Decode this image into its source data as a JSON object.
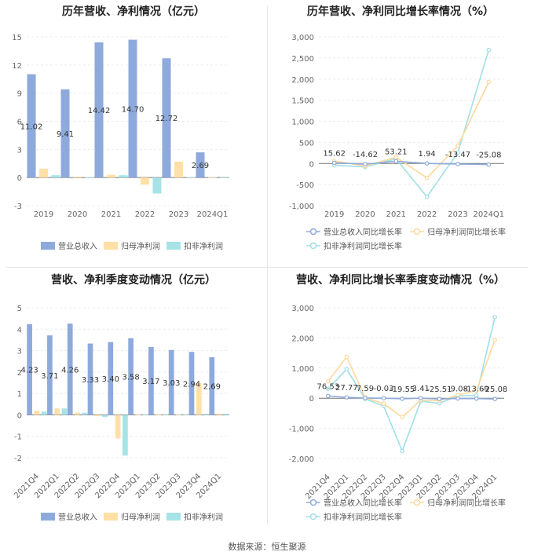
{
  "source_label": "数据来源：恒生聚源",
  "colors": {
    "revenue": "#8eaadc",
    "netprofit": "#ffe0a6",
    "deducted": "#a6e3e6",
    "revenue_line": "#8eaadc",
    "netprofit_line": "#ffd89a",
    "deducted_line": "#9fdfe6"
  },
  "chart_data": [
    {
      "type": "bar",
      "title": "历年营收、净利情况（亿元）",
      "categories": [
        "2019",
        "2020",
        "2021",
        "2022",
        "2023",
        "2024Q1"
      ],
      "series": [
        {
          "name": "营业总收入",
          "values": [
            11.02,
            9.41,
            14.42,
            14.7,
            12.72,
            2.69
          ],
          "labels": [
            "11.02",
            "9.41",
            "14.42",
            "14.70",
            "12.72",
            "2.69"
          ]
        },
        {
          "name": "归母净利润",
          "values": [
            0.95,
            0.1,
            0.3,
            -0.75,
            1.7,
            0.05
          ]
        },
        {
          "name": "扣非净利润",
          "values": [
            0.25,
            0.05,
            0.25,
            -1.7,
            0.05,
            0.02
          ]
        }
      ],
      "yticks": [
        "15",
        "12",
        "9",
        "6",
        "3",
        "0",
        "-3"
      ],
      "ylim": [
        -3,
        15
      ],
      "legend_position": "bottom"
    },
    {
      "type": "line",
      "title": "历年营收、净利同比增长率情况（%）",
      "categories": [
        "2019",
        "2020",
        "2021",
        "2022",
        "2023",
        "2024Q1"
      ],
      "series": [
        {
          "name": "营业总收入同比增长率",
          "values": [
            15.62,
            -14.62,
            53.21,
            1.94,
            -13.47,
            -25.08
          ],
          "labels": [
            "15.62",
            "-14.62",
            "53.21",
            "1.94",
            "-13.47",
            "-25.08"
          ]
        },
        {
          "name": "归母净利润同比增长率",
          "values": [
            60,
            -60,
            150,
            -340,
            420,
            1930
          ]
        },
        {
          "name": "扣非净利润同比增长率",
          "values": [
            -40,
            -80,
            110,
            -790,
            260,
            2690
          ]
        }
      ],
      "yticks": [
        "3,000",
        "2,500",
        "2,000",
        "1,500",
        "1,000",
        "500",
        "0",
        "-500",
        "-1,000"
      ],
      "ylim": [
        -1000,
        3000
      ],
      "legend_position": "bottom"
    },
    {
      "type": "bar",
      "title": "营收、净利季度变动情况（亿元）",
      "categories": [
        "2021Q4",
        "2022Q1",
        "2022Q2",
        "2022Q3",
        "2022Q4",
        "2023Q1",
        "2023Q2",
        "2023Q3",
        "2023Q4",
        "2024Q1"
      ],
      "series": [
        {
          "name": "营业总收入",
          "values": [
            4.23,
            3.71,
            4.26,
            3.33,
            3.4,
            3.58,
            3.17,
            3.03,
            2.94,
            2.69
          ],
          "labels": [
            "4.23",
            "3.71",
            "4.26",
            "3.33",
            "3.40",
            "3.58",
            "3.17",
            "3.03",
            "2.94",
            "2.69"
          ]
        },
        {
          "name": "归母净利润",
          "values": [
            0.2,
            0.3,
            0.1,
            -0.05,
            -1.1,
            0.02,
            0.02,
            0.02,
            1.5,
            0.05
          ]
        },
        {
          "name": "扣非净利润",
          "values": [
            0.15,
            0.3,
            0.1,
            -0.1,
            -1.9,
            0.02,
            0.02,
            0.02,
            0.05,
            0.05
          ]
        }
      ],
      "yticks": [
        "5",
        "4",
        "3",
        "2",
        "1",
        "0",
        "-1",
        "-2"
      ],
      "ylim": [
        -2,
        5
      ],
      "legend_position": "bottom"
    },
    {
      "type": "line",
      "title": "营收、净利同比增长率季度变动情况（%）",
      "categories": [
        "2021Q4",
        "2022Q1",
        "2022Q2",
        "2022Q3",
        "2022Q4",
        "2023Q1",
        "2023Q2",
        "2023Q3",
        "2023Q4",
        "2024Q1"
      ],
      "series": [
        {
          "name": "营业总收入同比增长率",
          "values": [
            76.53,
            27.77,
            7.59,
            -0.03,
            -19.55,
            3.41,
            -25.51,
            -9.08,
            -13.69,
            -25.08
          ],
          "labels": [
            "76.53",
            "27.77",
            "7.59",
            "-0.03",
            "-19.55",
            "3.41",
            "-25.51",
            "-9.08",
            "-13.69",
            "-25.08"
          ]
        },
        {
          "name": "归母净利润同比增长率",
          "values": [
            560,
            1370,
            20,
            -180,
            -630,
            -60,
            -80,
            100,
            250,
            1930
          ]
        },
        {
          "name": "扣非净利润同比增长率",
          "values": [
            310,
            960,
            -20,
            -260,
            -1750,
            -100,
            -170,
            80,
            90,
            2690
          ]
        }
      ],
      "yticks": [
        "3,000",
        "2,000",
        "1,000",
        "0",
        "-1,000",
        "-2,000"
      ],
      "ylim": [
        -2000,
        3000
      ],
      "legend_position": "bottom"
    }
  ]
}
